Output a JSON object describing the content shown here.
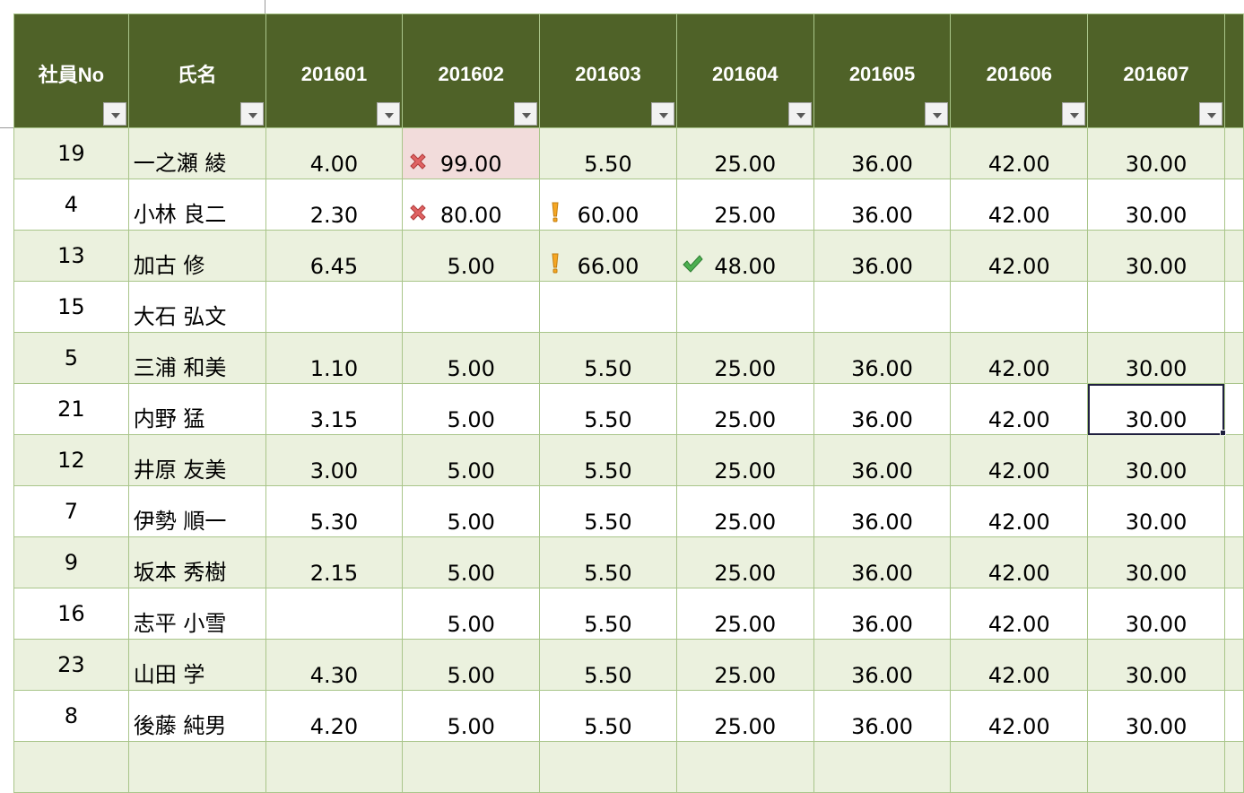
{
  "headers": [
    "社員No",
    "氏名",
    "201601",
    "201602",
    "201603",
    "201604",
    "201605",
    "201606",
    "201607",
    ""
  ],
  "rows": [
    {
      "no": "19",
      "name": "一之瀬 綾",
      "vals": [
        "4.00",
        "99.00",
        "5.50",
        "25.00",
        "36.00",
        "42.00",
        "30.00",
        ""
      ],
      "icons": [
        "",
        "x-icon",
        "",
        "",
        "",
        "",
        "",
        ""
      ]
    },
    {
      "no": "4",
      "name": "小林 良二",
      "vals": [
        "2.30",
        "80.00",
        "60.00",
        "25.00",
        "36.00",
        "42.00",
        "30.00",
        ""
      ],
      "icons": [
        "",
        "x-icon",
        "exclamation-icon",
        "",
        "",
        "",
        "",
        ""
      ]
    },
    {
      "no": "13",
      "name": "加古 修",
      "vals": [
        "6.45",
        "5.00",
        "66.00",
        "48.00",
        "36.00",
        "42.00",
        "30.00",
        ""
      ],
      "icons": [
        "",
        "",
        "exclamation-icon",
        "check-icon",
        "",
        "",
        "",
        ""
      ]
    },
    {
      "no": "15",
      "name": "大石 弘文",
      "vals": [
        "",
        "",
        "",
        "",
        "",
        "",
        "",
        ""
      ],
      "icons": [
        "",
        "",
        "",
        "",
        "",
        "",
        "",
        ""
      ]
    },
    {
      "no": "5",
      "name": "三浦 和美",
      "vals": [
        "1.10",
        "5.00",
        "5.50",
        "25.00",
        "36.00",
        "42.00",
        "30.00",
        ""
      ],
      "icons": [
        "",
        "",
        "",
        "",
        "",
        "",
        "",
        ""
      ]
    },
    {
      "no": "21",
      "name": "内野 猛",
      "vals": [
        "3.15",
        "5.00",
        "5.50",
        "25.00",
        "36.00",
        "42.00",
        "30.00",
        ""
      ],
      "icons": [
        "",
        "",
        "",
        "",
        "",
        "",
        "",
        ""
      ]
    },
    {
      "no": "12",
      "name": "井原 友美",
      "vals": [
        "3.00",
        "5.00",
        "5.50",
        "25.00",
        "36.00",
        "42.00",
        "30.00",
        ""
      ],
      "icons": [
        "",
        "",
        "",
        "",
        "",
        "",
        "",
        ""
      ]
    },
    {
      "no": "7",
      "name": "伊勢 順一",
      "vals": [
        "5.30",
        "5.00",
        "5.50",
        "25.00",
        "36.00",
        "42.00",
        "30.00",
        ""
      ],
      "icons": [
        "",
        "",
        "",
        "",
        "",
        "",
        "",
        ""
      ]
    },
    {
      "no": "9",
      "name": "坂本 秀樹",
      "vals": [
        "2.15",
        "5.00",
        "5.50",
        "25.00",
        "36.00",
        "42.00",
        "30.00",
        ""
      ],
      "icons": [
        "",
        "",
        "",
        "",
        "",
        "",
        "",
        ""
      ]
    },
    {
      "no": "16",
      "name": "志平 小雪",
      "vals": [
        "",
        "5.00",
        "5.50",
        "25.00",
        "36.00",
        "42.00",
        "30.00",
        ""
      ],
      "icons": [
        "",
        "",
        "",
        "",
        "",
        "",
        "",
        ""
      ]
    },
    {
      "no": "23",
      "name": "山田 学",
      "vals": [
        "4.30",
        "5.00",
        "5.50",
        "25.00",
        "36.00",
        "42.00",
        "30.00",
        ""
      ],
      "icons": [
        "",
        "",
        "",
        "",
        "",
        "",
        "",
        ""
      ]
    },
    {
      "no": "8",
      "name": "後藤 純男",
      "vals": [
        "4.20",
        "5.00",
        "5.50",
        "25.00",
        "36.00",
        "42.00",
        "30.00",
        ""
      ],
      "icons": [
        "",
        "",
        "",
        "",
        "",
        "",
        "",
        ""
      ]
    },
    {
      "no": "",
      "name": "",
      "vals": [
        "",
        "",
        "",
        "",
        "",
        "",
        "",
        ""
      ],
      "icons": [
        "",
        "",
        "",
        "",
        "",
        "",
        "",
        ""
      ]
    }
  ],
  "highlight_cell": {
    "row": 0,
    "col": 1,
    "color": "#f2dcdb"
  },
  "selected_cell": {
    "row": 5,
    "col": 6
  },
  "colors": {
    "header_bg": "#4f6228",
    "band": "#ebf1de",
    "border": "#a9c58a",
    "bad": "#f2dcdb"
  }
}
